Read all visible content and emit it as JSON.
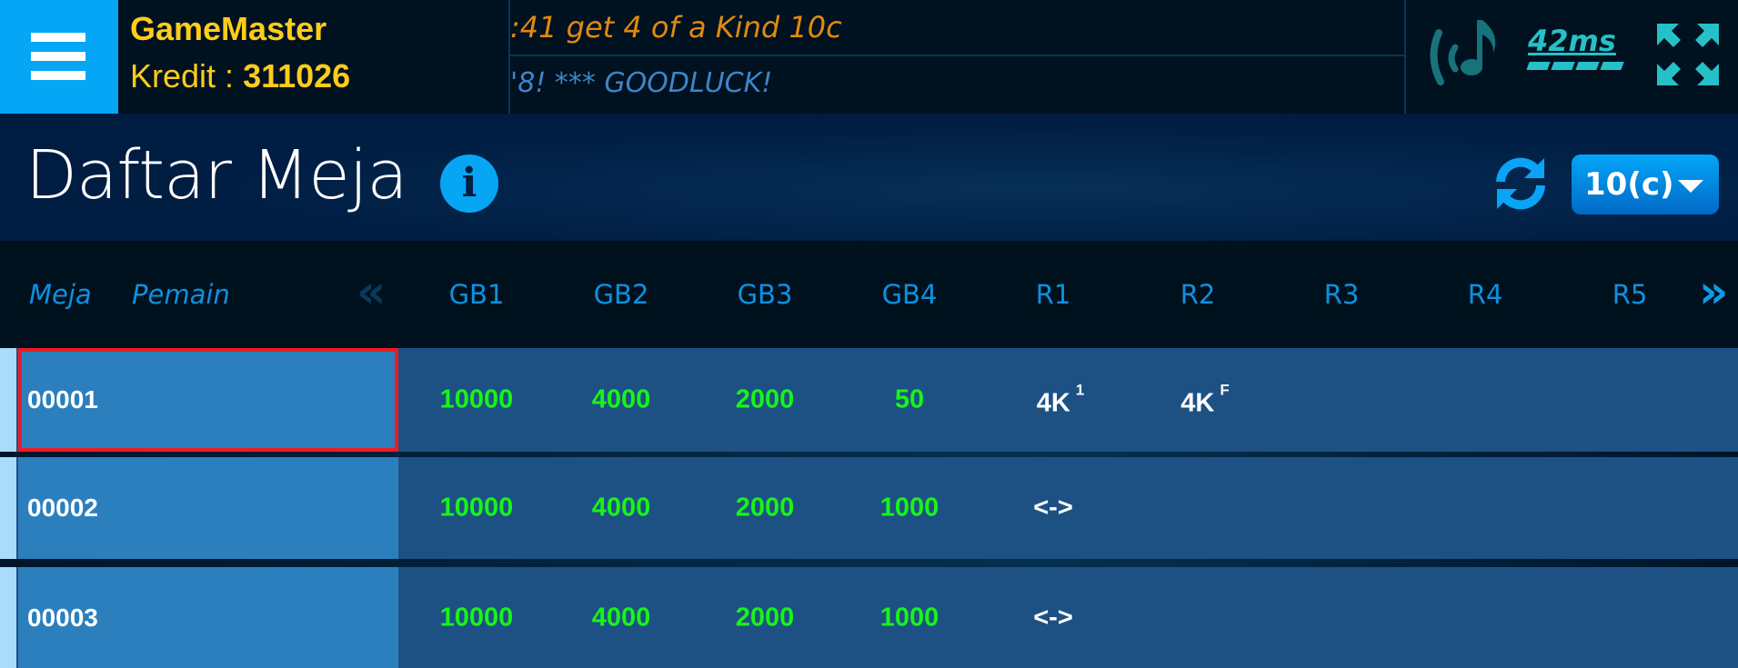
{
  "header": {
    "username": "GameMaster",
    "kredit_label": "Kredit : ",
    "kredit_value": "311026",
    "ticker_line1": ":41 get 4 of a Kind 10c",
    "ticker_line2": "'8! *** GOODLUCK!",
    "ping": "42ms",
    "colors": {
      "accent": "#04a6f5",
      "gold": "#ffcc1a",
      "teal": "#25c0c8"
    }
  },
  "page": {
    "title": "Daftar Meja",
    "stake_select": "10(c)"
  },
  "table": {
    "columns": {
      "meja": "Meja",
      "pemain": "Pemain",
      "prev": "«",
      "next": "»",
      "cols": [
        "GB1",
        "GB2",
        "GB3",
        "GB4",
        "R1",
        "R2",
        "R3",
        "R4",
        "R5"
      ]
    },
    "rows": [
      {
        "meja": "00001",
        "gb": [
          "10000",
          "4000",
          "2000",
          "50"
        ],
        "r": [
          {
            "v": "4K",
            "s": "1"
          },
          {
            "v": "4K",
            "s": "F"
          }
        ],
        "selected": true
      },
      {
        "meja": "00002",
        "gb": [
          "10000",
          "4000",
          "2000",
          "1000"
        ],
        "r": [
          {
            "v": "<->",
            "s": ""
          }
        ]
      },
      {
        "meja": "00003",
        "gb": [
          "10000",
          "4000",
          "2000",
          "1000"
        ],
        "r": [
          {
            "v": "<->",
            "s": ""
          }
        ]
      }
    ]
  }
}
